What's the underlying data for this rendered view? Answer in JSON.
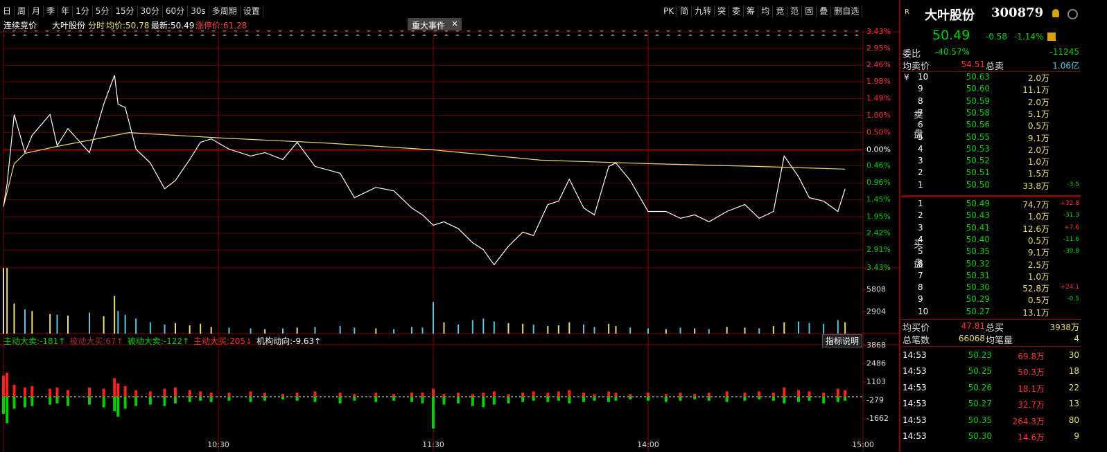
{
  "toolbar": {
    "periods": [
      "日",
      "周",
      "月",
      "季",
      "年",
      "1分",
      "5分",
      "15分",
      "30分",
      "60分",
      "30s",
      "多周期",
      "设置"
    ],
    "tools": [
      "PK",
      "简",
      "九转",
      "突",
      "委",
      "筹",
      "均",
      "竞",
      "范",
      "固",
      "叠",
      "删自选"
    ]
  },
  "info_bar": {
    "status": "连续竞价",
    "stock": "大叶股份",
    "mode": "分时",
    "avg_price": "均价:50.78",
    "latest": "最新:50.49",
    "limit_up": "涨停价:61.28",
    "event_button": "重大事件",
    "close": "×"
  },
  "flow_bar": {
    "items": [
      {
        "text": "主动大卖:-181↑",
        "color": "#00d000"
      },
      {
        "text": "被动大买:67↑",
        "color": "#a03030"
      },
      {
        "text": "被动大卖:-122↑",
        "color": "#00d000"
      },
      {
        "text": "主动大买:205↓",
        "color": "#ff3030"
      },
      {
        "text": "机构动向:-9.63↑",
        "color": "#ffffff"
      }
    ],
    "help": "指标说明"
  },
  "chart_data": [
    {
      "type": "line",
      "xlim": [
        0,
        240
      ],
      "xticks": [
        {
          "value": 60,
          "label": "10:30"
        },
        {
          "value": 120,
          "label": "11:30"
        },
        {
          "value": 180,
          "label": "14:00"
        },
        {
          "value": 240,
          "label": "15:00"
        }
      ],
      "ylim": [
        -3.43,
        3.43
      ],
      "yticks": [
        {
          "value": 3.43,
          "label": "3.43%"
        },
        {
          "value": 2.95,
          "label": "2.95%"
        },
        {
          "value": 2.46,
          "label": "2.46%"
        },
        {
          "value": 1.98,
          "label": "1.98%"
        },
        {
          "value": 1.49,
          "label": "1.49%"
        },
        {
          "value": 1.0,
          "label": "1.00%"
        },
        {
          "value": 0.5,
          "label": "0.50%"
        },
        {
          "value": 0,
          "label": "0.00%"
        },
        {
          "value": -0.46,
          "label": "0.46%"
        },
        {
          "value": -0.96,
          "label": "0.96%"
        },
        {
          "value": -1.45,
          "label": "1.45%"
        },
        {
          "value": -1.95,
          "label": "1.95%"
        },
        {
          "value": -2.42,
          "label": "2.42%"
        },
        {
          "value": -2.91,
          "label": "2.91%"
        },
        {
          "value": -3.43,
          "label": "3.43%"
        }
      ],
      "grid": true,
      "series": [
        {
          "color": "#ffffff",
          "x": [
            0,
            1,
            3,
            6,
            8,
            13,
            15,
            18,
            24,
            28,
            31,
            32,
            34,
            37,
            41,
            45,
            48,
            52,
            55,
            58,
            63,
            69,
            73,
            78,
            82,
            87,
            94,
            98,
            104,
            109,
            114,
            117,
            120,
            123,
            127,
            131,
            134,
            137,
            141,
            145,
            148,
            152,
            155,
            158,
            162,
            165,
            169,
            171,
            175,
            180,
            185,
            189,
            193,
            197,
            202,
            207,
            211,
            215,
            218,
            222,
            225,
            229,
            233,
            235
          ],
          "values": [
            -1.65,
            -0.99,
            1.03,
            -0.08,
            0.42,
            1.03,
            0.12,
            0.62,
            -0.08,
            1.33,
            2.17,
            1.33,
            1.23,
            0.02,
            -0.38,
            -1.13,
            -0.89,
            -0.28,
            0.22,
            0.32,
            0.02,
            -0.18,
            -0.08,
            -0.28,
            0.22,
            -0.48,
            -0.68,
            -1.39,
            -1.09,
            -1.19,
            -1.69,
            -1.89,
            -2.19,
            -2.09,
            -2.29,
            -2.7,
            -2.9,
            -3.34,
            -2.8,
            -2.39,
            -2.49,
            -1.59,
            -1.49,
            -0.85,
            -1.69,
            -1.89,
            -0.48,
            -0.38,
            -0.89,
            -1.79,
            -1.79,
            -1.99,
            -1.89,
            -2.09,
            -1.79,
            -1.59,
            -1.99,
            -1.79,
            -0.18,
            -0.78,
            -1.39,
            -1.49,
            -1.79,
            -1.13
          ]
        },
        {
          "color": "#e8e070",
          "x": [
            0,
            3,
            6,
            15,
            25,
            35,
            60,
            90,
            120,
            150,
            180,
            210,
            235
          ],
          "values": [
            -1.65,
            -0.4,
            -0.1,
            0.1,
            0.3,
            0.5,
            0.35,
            0.2,
            0,
            -0.3,
            -0.4,
            -0.48,
            -0.56
          ]
        }
      ]
    },
    {
      "type": "bar",
      "xlim": [
        0,
        240
      ],
      "ylim": [
        0,
        8712
      ],
      "yticks": [
        5808,
        2904
      ],
      "up_color": "#e8e070",
      "down_color": "#4ec9e8",
      "x": [
        0,
        1,
        3,
        6,
        8,
        13,
        15,
        18,
        24,
        28,
        31,
        32,
        34,
        37,
        41,
        45,
        48,
        52,
        55,
        58,
        63,
        69,
        73,
        78,
        82,
        87,
        94,
        98,
        104,
        109,
        114,
        117,
        120,
        123,
        127,
        131,
        134,
        137,
        141,
        145,
        148,
        152,
        155,
        158,
        162,
        165,
        169,
        171,
        175,
        180,
        185,
        189,
        193,
        197,
        202,
        207,
        211,
        215,
        218,
        222,
        225,
        229,
        233,
        235
      ],
      "values": [
        8700,
        8700,
        4000,
        3200,
        3000,
        2600,
        2500,
        2400,
        2800,
        2300,
        5000,
        3000,
        2500,
        2000,
        1500,
        1200,
        1400,
        1100,
        1300,
        900,
        800,
        700,
        600,
        700,
        800,
        900,
        1000,
        800,
        700,
        600,
        900,
        800,
        4200,
        1500,
        1200,
        1800,
        2000,
        1600,
        1400,
        1300,
        1200,
        1000,
        1100,
        1500,
        1200,
        900,
        1300,
        1000,
        800,
        700,
        600,
        800,
        700,
        600,
        900,
        800,
        700,
        1000,
        1500,
        1600,
        1400,
        1300,
        1800,
        1500
      ]
    },
    {
      "type": "bar",
      "xlim": [
        0,
        240
      ],
      "ylim": [
        -3488,
        4337
      ],
      "yticks": [
        3868,
        2486,
        1103,
        -279,
        -1662
      ],
      "x": [
        0,
        1,
        3,
        6,
        8,
        13,
        15,
        18,
        24,
        28,
        31,
        32,
        34,
        37,
        41,
        45,
        48,
        52,
        55,
        58,
        63,
        69,
        73,
        78,
        82,
        87,
        94,
        98,
        104,
        109,
        114,
        117,
        120,
        123,
        127,
        131,
        134,
        137,
        141,
        145,
        148,
        152,
        155,
        158,
        162,
        165,
        169,
        171,
        175,
        180,
        185,
        189,
        193,
        197,
        202,
        207,
        211,
        215,
        218,
        222,
        225,
        229,
        233,
        235
      ],
      "series": [
        {
          "color": "#ff2020",
          "values": [
            1600,
            1800,
            900,
            700,
            800,
            600,
            700,
            500,
            700,
            600,
            1400,
            1000,
            800,
            500,
            400,
            600,
            700,
            500,
            400,
            300,
            300,
            400,
            300,
            200,
            300,
            400,
            300,
            200,
            300,
            200,
            300,
            300,
            600,
            200,
            300,
            200,
            300,
            400,
            200,
            300,
            400,
            300,
            400,
            500,
            300,
            200,
            400,
            300,
            200,
            300,
            200,
            300,
            200,
            300,
            400,
            300,
            400,
            300,
            700,
            500,
            400,
            300,
            600,
            500
          ]
        },
        {
          "color": "#00d000",
          "values": [
            -1300,
            -2000,
            -900,
            -800,
            -700,
            -600,
            -500,
            -700,
            -600,
            -800,
            -1100,
            -1500,
            -900,
            -700,
            -600,
            -700,
            -500,
            -400,
            -300,
            -400,
            -300,
            -400,
            -300,
            -200,
            -300,
            -400,
            -500,
            -300,
            -400,
            -300,
            -400,
            -500,
            -2400,
            -600,
            -500,
            -700,
            -800,
            -600,
            -500,
            -400,
            -300,
            -400,
            -300,
            -500,
            -400,
            -300,
            -400,
            -300,
            -200,
            -300,
            -400,
            -300,
            -200,
            -300,
            -400,
            -300,
            -200,
            -300,
            -500,
            -400,
            -300,
            -500,
            -400,
            -300
          ]
        }
      ]
    }
  ],
  "quote": {
    "badge": "R",
    "name": "大叶股份",
    "code": "300879",
    "price": "50.49",
    "change": "-0.58",
    "change_pct": "-1.14%",
    "ratio_label": "委比",
    "ratio": "-40.57%",
    "ratio_diff": "-11245",
    "avg_sell_label": "均卖价",
    "avg_sell": "54.51",
    "total_sell_label": "总卖",
    "total_sell": "1.06亿",
    "currency": "¥",
    "sell_label": "卖盘",
    "buy_label": "买盘",
    "asks": [
      {
        "level": "10",
        "price": "50.63",
        "volume": "2.0万"
      },
      {
        "level": "9",
        "price": "50.60",
        "volume": "11.1万"
      },
      {
        "level": "8",
        "price": "50.59",
        "volume": "2.0万"
      },
      {
        "level": "7",
        "price": "50.58",
        "volume": "5.1万"
      },
      {
        "level": "6",
        "price": "50.56",
        "volume": "0.5万"
      },
      {
        "level": "5",
        "price": "50.55",
        "volume": "9.1万"
      },
      {
        "level": "4",
        "price": "50.53",
        "volume": "2.0万"
      },
      {
        "level": "3",
        "price": "50.52",
        "volume": "1.0万"
      },
      {
        "level": "2",
        "price": "50.51",
        "volume": "1.5万"
      },
      {
        "level": "1",
        "price": "50.50",
        "volume": "33.8万",
        "change": "-3.5"
      }
    ],
    "bids": [
      {
        "level": "1",
        "price": "50.49",
        "volume": "74.7万",
        "change": "+32.8"
      },
      {
        "level": "2",
        "price": "50.43",
        "volume": "1.0万",
        "change": "-31.3"
      },
      {
        "level": "3",
        "price": "50.41",
        "volume": "12.6万",
        "change": "+7.6"
      },
      {
        "level": "4",
        "price": "50.40",
        "volume": "0.5万",
        "change": "-11.6"
      },
      {
        "level": "5",
        "price": "50.35",
        "volume": "9.1万",
        "change": "-39.8"
      },
      {
        "level": "6",
        "price": "50.32",
        "volume": "2.5万"
      },
      {
        "level": "7",
        "price": "50.31",
        "volume": "1.0万"
      },
      {
        "level": "8",
        "price": "50.30",
        "volume": "52.8万",
        "change": "+24.1"
      },
      {
        "level": "9",
        "price": "50.29",
        "volume": "0.5万",
        "change": "-0.5"
      },
      {
        "level": "10",
        "price": "50.27",
        "volume": "13.1万"
      }
    ],
    "avg_buy_label": "均买价",
    "avg_buy": "47.81",
    "total_buy_label": "总买",
    "total_buy": "3938万",
    "trades_label": "总笔数",
    "trades": "66068",
    "avg_lot_label": "均笔量",
    "avg_lot": "4",
    "ticks": [
      {
        "time": "14:53",
        "price": "50.23",
        "amount": "69.8万",
        "count": "30"
      },
      {
        "time": "14:53",
        "price": "50.25",
        "amount": "50.3万",
        "count": "18"
      },
      {
        "time": "14:53",
        "price": "50.26",
        "amount": "18.1万",
        "count": "22"
      },
      {
        "time": "14:53",
        "price": "50.27",
        "amount": "32.7万",
        "count": "13"
      },
      {
        "time": "14:53",
        "price": "50.35",
        "amount": "264.3万",
        "count": "80"
      },
      {
        "time": "14:53",
        "price": "50.30",
        "amount": "14.6万",
        "count": "9"
      }
    ]
  }
}
